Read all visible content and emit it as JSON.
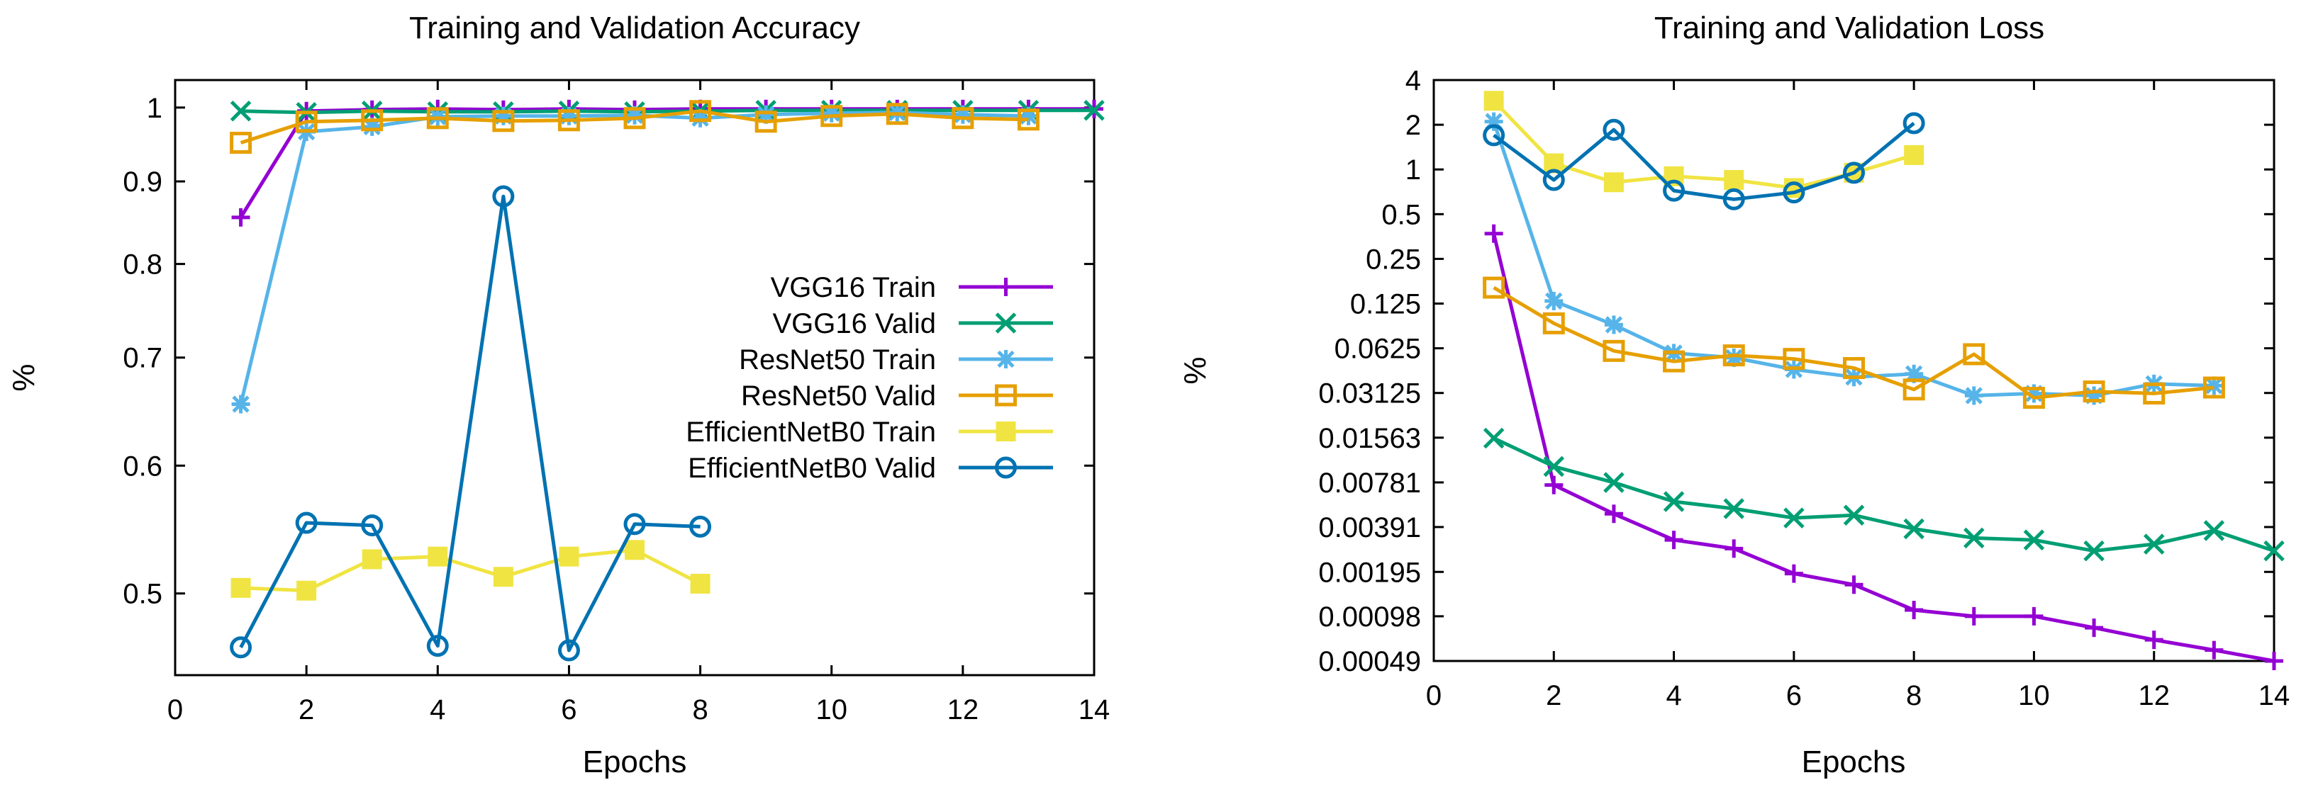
{
  "chart_data": [
    {
      "type": "line",
      "title": "Training and Validation Accuracy",
      "xlabel": "Epochs",
      "ylabel": "%",
      "yscale": "log",
      "xlim": [
        0,
        14
      ],
      "ylim": [
        0.445,
        1.04
      ],
      "xticks": [
        0,
        2,
        4,
        6,
        8,
        10,
        12,
        14
      ],
      "xtick_labels": [
        "0",
        "2",
        "4",
        "6",
        "8",
        "10",
        "12",
        "14"
      ],
      "yticks": [
        0.5,
        0.6,
        0.7,
        0.8,
        0.9,
        1
      ],
      "ytick_labels": [
        "0.5",
        "0.6",
        "0.7",
        "0.8",
        "0.9",
        "1"
      ],
      "grid": false,
      "legend_position": "right",
      "series": [
        {
          "name": "VGG16 Train",
          "color": "#9400d3",
          "marker": "plus",
          "x": [
            1,
            2,
            3,
            4,
            5,
            6,
            7,
            8,
            9,
            10,
            11,
            12,
            13,
            14
          ],
          "y": [
            0.855,
            0.995,
            0.997,
            0.998,
            0.997,
            0.998,
            0.997,
            0.998,
            0.998,
            0.998,
            0.998,
            0.998,
            0.998,
            0.998
          ]
        },
        {
          "name": "VGG16 Valid",
          "color": "#009e73",
          "marker": "cross",
          "x": [
            1,
            2,
            3,
            4,
            5,
            6,
            7,
            8,
            9,
            10,
            11,
            12,
            13,
            14
          ],
          "y": [
            0.995,
            0.993,
            0.995,
            0.994,
            0.994,
            0.995,
            0.994,
            0.995,
            0.996,
            0.996,
            0.996,
            0.996,
            0.996,
            0.996
          ]
        },
        {
          "name": "ResNet50 Train",
          "color": "#56b4e9",
          "marker": "star",
          "x": [
            1,
            2,
            3,
            4,
            5,
            6,
            7,
            8,
            9,
            10,
            11,
            12,
            13
          ],
          "y": [
            0.655,
            0.966,
            0.973,
            0.987,
            0.988,
            0.988,
            0.989,
            0.985,
            0.99,
            0.992,
            0.993,
            0.99,
            0.988
          ]
        },
        {
          "name": "ResNet50 Valid",
          "color": "#e69f00",
          "marker": "square",
          "x": [
            1,
            2,
            3,
            4,
            5,
            6,
            7,
            8,
            9,
            10,
            11,
            12,
            13
          ],
          "y": [
            0.951,
            0.98,
            0.982,
            0.985,
            0.981,
            0.982,
            0.985,
            0.995,
            0.98,
            0.988,
            0.991,
            0.985,
            0.983
          ]
        },
        {
          "name": "EfficientNetB0 Train",
          "color": "#f0e442",
          "marker": "filled-square",
          "x": [
            1,
            2,
            3,
            4,
            5,
            6,
            7,
            8
          ],
          "y": [
            0.504,
            0.502,
            0.525,
            0.527,
            0.512,
            0.527,
            0.532,
            0.507
          ]
        },
        {
          "name": "EfficientNetB0 Valid",
          "color": "#0072b2",
          "marker": "circle",
          "x": [
            1,
            2,
            3,
            4,
            5,
            6,
            7,
            8
          ],
          "y": [
            0.463,
            0.553,
            0.551,
            0.464,
            0.881,
            0.461,
            0.552,
            0.55
          ]
        }
      ]
    },
    {
      "type": "line",
      "title": "Training and Validation Loss",
      "xlabel": "Epochs",
      "ylabel": "%",
      "yscale": "log2",
      "xlim": [
        0,
        14
      ],
      "ylim": [
        0.00049,
        4
      ],
      "xticks": [
        0,
        2,
        4,
        6,
        8,
        10,
        12,
        14
      ],
      "xtick_labels": [
        "0",
        "2",
        "4",
        "6",
        "8",
        "10",
        "12",
        "14"
      ],
      "yticks": [
        0.00049,
        0.00098,
        0.00195,
        0.00391,
        0.00781,
        0.01563,
        0.03125,
        0.0625,
        0.125,
        0.25,
        0.5,
        1,
        2,
        4
      ],
      "ytick_labels": [
        "0.00049",
        "0.00098",
        "0.00195",
        "0.00391",
        "0.00781",
        "0.01563",
        "0.03125",
        "0.0625",
        "0.125",
        "0.25",
        "0.5",
        "1",
        "2",
        "4"
      ],
      "grid": false,
      "series": [
        {
          "name": "VGG16 Train",
          "color": "#9400d3",
          "marker": "plus",
          "x": [
            1,
            2,
            3,
            4,
            5,
            6,
            7,
            8,
            9,
            10,
            11,
            12,
            13,
            14
          ],
          "y": [
            0.37,
            0.0075,
            0.0048,
            0.0032,
            0.0028,
            0.0019,
            0.0016,
            0.00108,
            0.00098,
            0.00098,
            0.00082,
            0.00068,
            0.00058,
            0.00049
          ]
        },
        {
          "name": "VGG16 Valid",
          "color": "#009e73",
          "marker": "cross",
          "x": [
            1,
            2,
            3,
            4,
            5,
            6,
            7,
            8,
            9,
            10,
            11,
            12,
            13,
            14
          ],
          "y": [
            0.0155,
            0.01,
            0.0078,
            0.0058,
            0.0052,
            0.0045,
            0.0047,
            0.0038,
            0.0033,
            0.0032,
            0.0027,
            0.003,
            0.0037,
            0.0027
          ]
        },
        {
          "name": "ResNet50 Train",
          "color": "#56b4e9",
          "marker": "star",
          "x": [
            1,
            2,
            3,
            4,
            5,
            6,
            7,
            8,
            9,
            10,
            11,
            12,
            13
          ],
          "y": [
            2.1,
            0.13,
            0.09,
            0.058,
            0.054,
            0.045,
            0.04,
            0.042,
            0.03,
            0.031,
            0.03,
            0.036,
            0.035
          ]
        },
        {
          "name": "ResNet50 Valid",
          "color": "#e69f00",
          "marker": "square",
          "x": [
            1,
            2,
            3,
            4,
            5,
            6,
            7,
            8,
            9,
            10,
            11,
            12,
            13
          ],
          "y": [
            0.16,
            0.092,
            0.06,
            0.051,
            0.056,
            0.053,
            0.046,
            0.033,
            0.057,
            0.029,
            0.032,
            0.031,
            0.034
          ]
        },
        {
          "name": "EfficientNetB0 Train",
          "color": "#f0e442",
          "marker": "filled-square",
          "x": [
            1,
            2,
            3,
            4,
            5,
            6,
            7,
            8
          ],
          "y": [
            2.9,
            1.1,
            0.82,
            0.9,
            0.85,
            0.75,
            0.95,
            1.25
          ]
        },
        {
          "name": "EfficientNetB0 Valid",
          "color": "#0072b2",
          "marker": "circle",
          "x": [
            1,
            2,
            3,
            4,
            5,
            6,
            7,
            8
          ],
          "y": [
            1.7,
            0.85,
            1.85,
            0.72,
            0.63,
            0.7,
            0.95,
            2.05
          ]
        }
      ]
    }
  ]
}
